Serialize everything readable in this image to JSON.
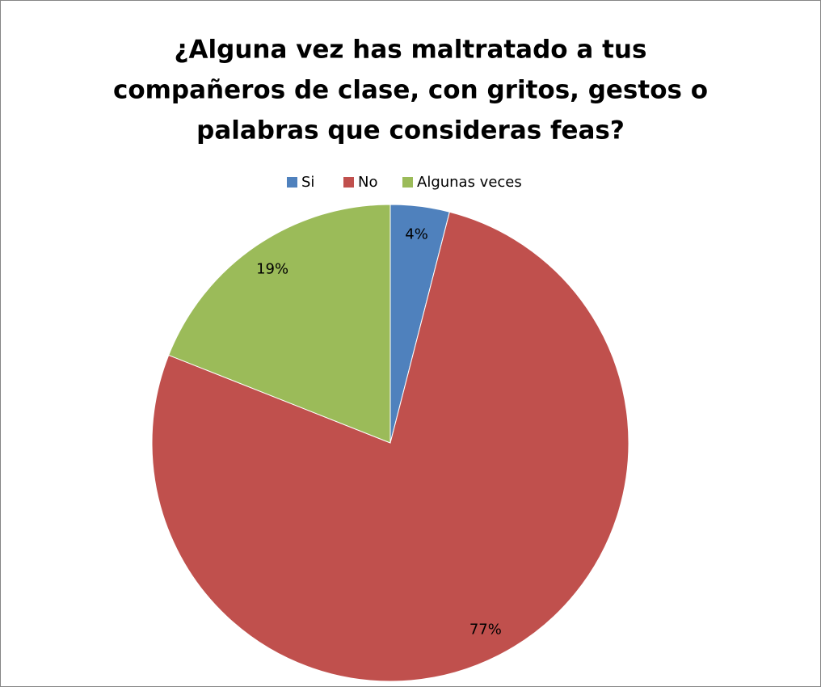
{
  "chart_data": {
    "type": "pie",
    "title": [
      "¿Alguna vez has maltratado a tus",
      "compañeros de clase, con gritos, gestos o",
      "palabras que consideras feas?"
    ],
    "categories": [
      "Si",
      "No",
      "Algunas veces"
    ],
    "values": [
      4,
      77,
      19
    ],
    "value_labels": [
      "4%",
      "77%",
      "19%"
    ],
    "colors": [
      "#4f81bd",
      "#c0504d",
      "#9bbb59"
    ],
    "legend": "top"
  }
}
